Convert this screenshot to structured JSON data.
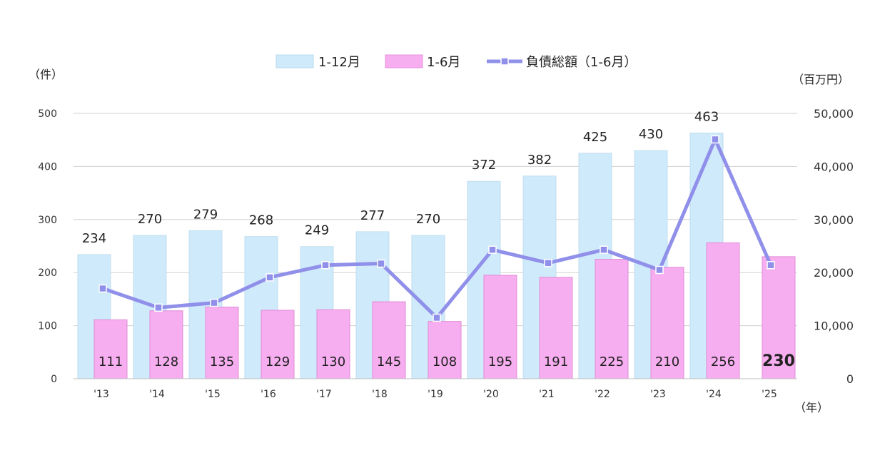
{
  "chart_data": {
    "type": "bar",
    "categories": [
      "'13",
      "'14",
      "'15",
      "'16",
      "'17",
      "'18",
      "'19",
      "'20",
      "'21",
      "'22",
      "'23",
      "'24",
      "'25"
    ],
    "series": [
      {
        "name": "1-12月",
        "type": "bar",
        "axis": "left",
        "color": "#cfeafb",
        "values": [
          234,
          270,
          279,
          268,
          249,
          277,
          270,
          372,
          382,
          425,
          430,
          463,
          null
        ]
      },
      {
        "name": "1-6月",
        "type": "bar",
        "axis": "left",
        "color": "#f7aef0",
        "values": [
          111,
          128,
          135,
          129,
          130,
          145,
          108,
          195,
          191,
          225,
          210,
          256,
          230
        ]
      },
      {
        "name": "負債総額（1-6月）",
        "type": "line",
        "axis": "right",
        "color": "#9090ea",
        "values": [
          17000,
          13400,
          14300,
          19100,
          21400,
          21700,
          11500,
          24300,
          21800,
          24300,
          20500,
          45100,
          21400
        ]
      }
    ],
    "y_left": {
      "unit": "（件）",
      "ylim": [
        0,
        500
      ],
      "ticks": [
        "0",
        "100",
        "200",
        "300",
        "400",
        "500"
      ]
    },
    "y_right": {
      "unit": "（百万円）",
      "ylim": [
        0,
        50000
      ],
      "ticks": [
        "0",
        "10,000",
        "20,000",
        "30,000",
        "40,000",
        "50,000"
      ]
    },
    "x_unit": "（年）",
    "legend": {
      "placement": "top-center"
    },
    "grid": true
  }
}
